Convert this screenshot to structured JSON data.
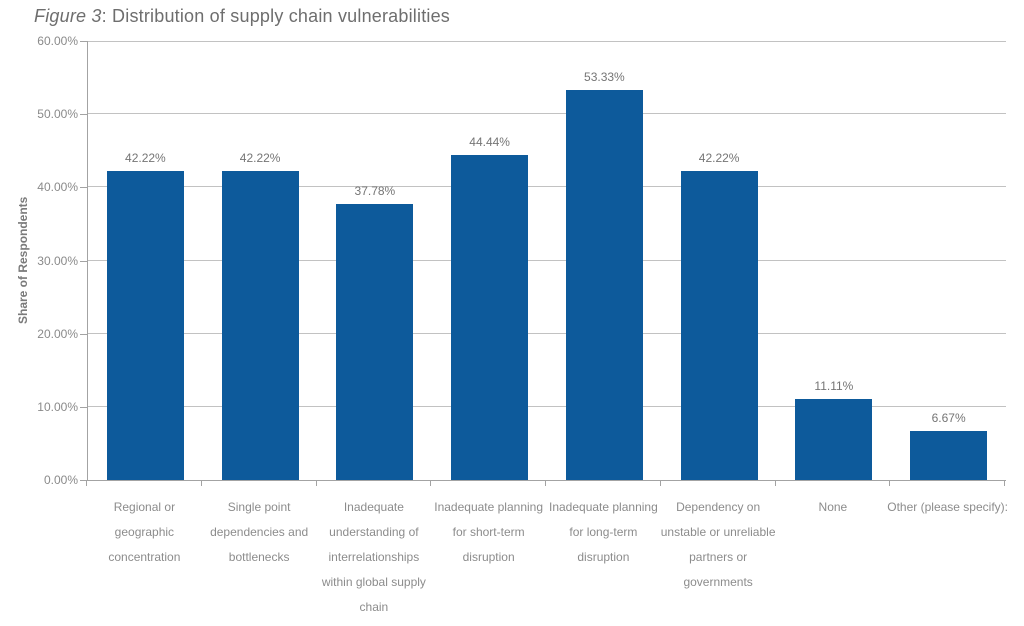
{
  "title": {
    "figure_label": "Figure 3",
    "rest": ": Distribution of supply chain vulnerabilities"
  },
  "chart_data": {
    "type": "bar",
    "title": "Figure 3: Distribution of supply chain vulnerabilities",
    "categories": [
      "Regional or geographic concentration",
      "Single point dependencies and bottlenecks",
      "Inadequate understanding of interrelationships within global supply chain",
      "Inadequate planning for short-term disruption",
      "Inadequate planning for long-term disruption",
      "Dependency on unstable or unreliable partners or governments",
      "None",
      "Other (please specify):"
    ],
    "values": [
      42.22,
      42.22,
      37.78,
      44.44,
      53.33,
      42.22,
      11.11,
      6.67
    ],
    "value_labels": [
      "42.22%",
      "42.22%",
      "37.78%",
      "44.44%",
      "53.33%",
      "42.22%",
      "11.11%",
      "6.67%"
    ],
    "xlabel": "",
    "ylabel": "Share of Respondents",
    "ylim": [
      0,
      60
    ],
    "ytick_step": 10,
    "ytick_labels": [
      "0.00%",
      "10.00%",
      "20.00%",
      "30.00%",
      "40.00%",
      "50.00%",
      "60.00%"
    ],
    "grid": "horizontal",
    "legend": "none"
  },
  "colors": {
    "bar": "#0d5a9b",
    "grid": "#c2c2c2",
    "axis": "#a3a3a3",
    "value_label": "#757575",
    "category_label": "#8c8c8c",
    "ytick_label": "#8a8a8a",
    "title": "#6e6e6e"
  }
}
